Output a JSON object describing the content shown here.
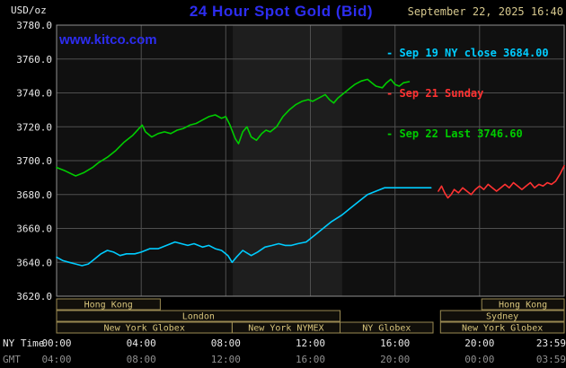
{
  "header": {
    "unit_label": "USD/oz",
    "title": "24 Hour Spot Gold (Bid)",
    "datetime": "September 22, 2025 16:40",
    "watermark": "www.kitco.com"
  },
  "axes": {
    "ny_time_label": "NY Time",
    "gmt_label": "GMT"
  },
  "legend": {
    "items": [
      {
        "label": "- Sep 19 NY close 3684.00",
        "color": "#00ccff"
      },
      {
        "label": "- Sep 21 Sunday",
        "color": "#ff3232"
      },
      {
        "label": "- Sep 22 Last 3746.60",
        "color": "#00cc00"
      }
    ]
  },
  "colors": {
    "background": "#000000",
    "plot_background": "#101010",
    "nymex_band": "#1e1e1e",
    "grid": "#4f4f4f",
    "plot_border": "#8f8f8f",
    "title_blue": "#2d2df0",
    "kitco_blue": "#2d2df0",
    "date_text": "#d6c88e",
    "axis_text": "#e8e8e8",
    "gmt_text": "#8f8f8f",
    "session_border": "#9a8a52",
    "session_text": "#d8c57c",
    "session_fill": "rgba(214,197,124,0.08)"
  },
  "chart_data": {
    "type": "line",
    "title": "24 Hour Spot Gold (Bid)",
    "ylabel": "USD/oz",
    "ylim": [
      3620,
      3780
    ],
    "y_ticks": [
      3620,
      3640,
      3660,
      3680,
      3700,
      3720,
      3740,
      3760,
      3780
    ],
    "x_range_hours": [
      0,
      24
    ],
    "x_ticks": [
      {
        "hour": 0,
        "ny": "00:00",
        "gmt": "04:00"
      },
      {
        "hour": 4,
        "ny": "04:00",
        "gmt": "08:00"
      },
      {
        "hour": 8,
        "ny": "08:00",
        "gmt": "12:00"
      },
      {
        "hour": 12,
        "ny": "12:00",
        "gmt": "16:00"
      },
      {
        "hour": 16,
        "ny": "16:00",
        "gmt": "20:00"
      },
      {
        "hour": 20,
        "ny": "20:00",
        "gmt": "00:00"
      },
      {
        "hour": 24,
        "ny": "23:59",
        "gmt": "03:59"
      }
    ],
    "grid_vertical_hours": [
      4,
      8,
      12,
      16,
      20
    ],
    "grid": true,
    "legend_position": "top-right",
    "nymex_highlight_hours": [
      8.33,
      13.5
    ],
    "series": [
      {
        "key": "sep19",
        "name": "Sep 19 NY close",
        "close": 3684.0,
        "color": "#00ccff",
        "points": [
          [
            0,
            3643
          ],
          [
            0.3,
            3641
          ],
          [
            0.6,
            3640
          ],
          [
            0.9,
            3639
          ],
          [
            1.2,
            3638
          ],
          [
            1.5,
            3639
          ],
          [
            1.8,
            3642
          ],
          [
            2.1,
            3645
          ],
          [
            2.4,
            3647
          ],
          [
            2.7,
            3646
          ],
          [
            3,
            3644
          ],
          [
            3.3,
            3645
          ],
          [
            3.7,
            3645
          ],
          [
            4,
            3646
          ],
          [
            4.4,
            3648
          ],
          [
            4.8,
            3648
          ],
          [
            5.2,
            3650
          ],
          [
            5.6,
            3652
          ],
          [
            5.9,
            3651
          ],
          [
            6.2,
            3650
          ],
          [
            6.5,
            3651
          ],
          [
            6.9,
            3649
          ],
          [
            7.2,
            3650
          ],
          [
            7.5,
            3648
          ],
          [
            7.8,
            3647
          ],
          [
            8.1,
            3644
          ],
          [
            8.3,
            3640
          ],
          [
            8.5,
            3643
          ],
          [
            8.8,
            3647
          ],
          [
            9.2,
            3644
          ],
          [
            9.5,
            3646
          ],
          [
            9.85,
            3649
          ],
          [
            10.2,
            3650
          ],
          [
            10.5,
            3651
          ],
          [
            10.8,
            3650
          ],
          [
            11.1,
            3650
          ],
          [
            11.4,
            3651
          ],
          [
            11.8,
            3652
          ],
          [
            12.2,
            3656
          ],
          [
            12.6,
            3660
          ],
          [
            13,
            3664
          ],
          [
            13.5,
            3668
          ],
          [
            13.9,
            3672
          ],
          [
            14.3,
            3676
          ],
          [
            14.7,
            3680
          ],
          [
            15.1,
            3682
          ],
          [
            15.5,
            3684
          ],
          [
            16,
            3684
          ],
          [
            16.5,
            3684
          ],
          [
            17,
            3684
          ],
          [
            17.4,
            3684
          ],
          [
            17.7,
            3684
          ]
        ]
      },
      {
        "key": "sep21",
        "name": "Sep 21 Sunday",
        "color": "#ff3232",
        "points": [
          [
            18.05,
            3682
          ],
          [
            18.2,
            3685
          ],
          [
            18.35,
            3681
          ],
          [
            18.5,
            3678
          ],
          [
            18.65,
            3680
          ],
          [
            18.8,
            3683
          ],
          [
            19,
            3681
          ],
          [
            19.2,
            3684
          ],
          [
            19.4,
            3682
          ],
          [
            19.6,
            3680
          ],
          [
            19.8,
            3683
          ],
          [
            20,
            3685
          ],
          [
            20.2,
            3683
          ],
          [
            20.4,
            3686
          ],
          [
            20.6,
            3684
          ],
          [
            20.8,
            3682
          ],
          [
            21,
            3684
          ],
          [
            21.2,
            3686
          ],
          [
            21.4,
            3684
          ],
          [
            21.6,
            3687
          ],
          [
            21.8,
            3685
          ],
          [
            22,
            3683
          ],
          [
            22.2,
            3685
          ],
          [
            22.4,
            3687
          ],
          [
            22.6,
            3684
          ],
          [
            22.8,
            3686
          ],
          [
            23,
            3685
          ],
          [
            23.2,
            3687
          ],
          [
            23.4,
            3686
          ],
          [
            23.6,
            3688
          ],
          [
            23.8,
            3692
          ],
          [
            24,
            3697
          ]
        ]
      },
      {
        "key": "sep22",
        "name": "Sep 22 Last",
        "last": 3746.6,
        "color": "#00cc00",
        "points": [
          [
            0,
            3696
          ],
          [
            0.4,
            3694
          ],
          [
            0.9,
            3691
          ],
          [
            1.3,
            3693
          ],
          [
            1.7,
            3696
          ],
          [
            2,
            3699
          ],
          [
            2.4,
            3702
          ],
          [
            2.8,
            3706
          ],
          [
            3.2,
            3711
          ],
          [
            3.6,
            3715
          ],
          [
            3.9,
            3719
          ],
          [
            4.05,
            3721
          ],
          [
            4.2,
            3717
          ],
          [
            4.5,
            3714
          ],
          [
            4.8,
            3716
          ],
          [
            5.1,
            3717
          ],
          [
            5.4,
            3716
          ],
          [
            5.7,
            3718
          ],
          [
            6,
            3719
          ],
          [
            6.3,
            3721
          ],
          [
            6.6,
            3722
          ],
          [
            6.9,
            3724
          ],
          [
            7.2,
            3726
          ],
          [
            7.5,
            3727
          ],
          [
            7.8,
            3725
          ],
          [
            8,
            3726
          ],
          [
            8.2,
            3721
          ],
          [
            8.45,
            3713
          ],
          [
            8.6,
            3710
          ],
          [
            8.8,
            3717
          ],
          [
            9,
            3720
          ],
          [
            9.2,
            3714
          ],
          [
            9.45,
            3712
          ],
          [
            9.7,
            3716
          ],
          [
            9.9,
            3718
          ],
          [
            10.1,
            3717
          ],
          [
            10.4,
            3720
          ],
          [
            10.7,
            3726
          ],
          [
            11,
            3730
          ],
          [
            11.3,
            3733
          ],
          [
            11.6,
            3735
          ],
          [
            11.9,
            3736
          ],
          [
            12.1,
            3735
          ],
          [
            12.4,
            3737
          ],
          [
            12.7,
            3739
          ],
          [
            12.9,
            3736
          ],
          [
            13.1,
            3734
          ],
          [
            13.3,
            3737
          ],
          [
            13.6,
            3740
          ],
          [
            13.9,
            3743
          ],
          [
            14.1,
            3745
          ],
          [
            14.4,
            3747
          ],
          [
            14.7,
            3748
          ],
          [
            14.9,
            3746
          ],
          [
            15.1,
            3744
          ],
          [
            15.4,
            3743
          ],
          [
            15.6,
            3746
          ],
          [
            15.8,
            3748
          ],
          [
            16,
            3745
          ],
          [
            16.2,
            3744
          ],
          [
            16.4,
            3746
          ],
          [
            16.67,
            3746.6
          ]
        ]
      }
    ],
    "sessions": {
      "rows": [
        {
          "boxes": [
            {
              "label": "Hong Kong",
              "start": 0,
              "end": 4.9
            },
            {
              "label": "Hong Kong",
              "start": 20.1,
              "end": 24
            }
          ]
        },
        {
          "boxes": [
            {
              "label": "London",
              "start": 0,
              "end": 13.4
            },
            {
              "label": "Sydney",
              "start": 18.15,
              "end": 24
            }
          ]
        },
        {
          "boxes": [
            {
              "label": "New York Globex",
              "start": 0,
              "end": 8.3
            },
            {
              "label": "New York NYMEX",
              "start": 8.3,
              "end": 13.4
            },
            {
              "label": "NY Globex",
              "start": 13.4,
              "end": 17.8
            },
            {
              "label": "New York Globex",
              "start": 18.15,
              "end": 24
            }
          ]
        }
      ]
    }
  }
}
